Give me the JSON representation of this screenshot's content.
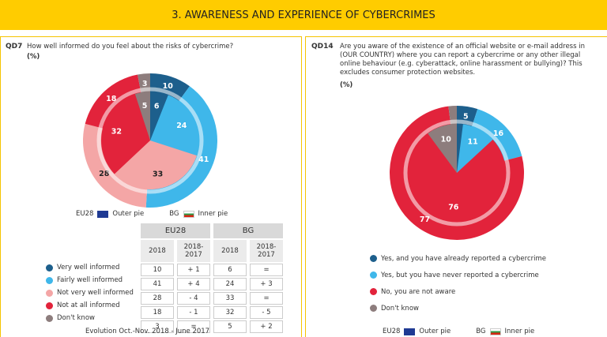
{
  "header": {
    "title": "3. AWARENESS AND EXPERIENCE OF CYBERCRIMES"
  },
  "chart_data": [
    {
      "type": "pie",
      "code": "QD7",
      "question": "How well informed do you feel about the risks of cybercrime?",
      "unit": "(%)",
      "categories": [
        "Very well informed",
        "Fairly well informed",
        "Not very well informed",
        "Not at all informed",
        "Don't know"
      ],
      "colors": [
        "#1d5f8c",
        "#3fb7ea",
        "#f4a6a6",
        "#e2233b",
        "#8d7d7d"
      ],
      "series": [
        {
          "name": "EU28",
          "ring": "Outer pie",
          "values": [
            10,
            41,
            28,
            18,
            3
          ]
        },
        {
          "name": "BG",
          "ring": "Inner pie",
          "values": [
            6,
            24,
            33,
            32,
            5
          ]
        }
      ]
    },
    {
      "type": "pie",
      "code": "QD14",
      "question": "Are you aware of the existence of an official website or e-mail address in (OUR COUNTRY) where you can report a cybercrime or any other illegal online behaviour (e.g. cyberattack, online harassment or bullying)? This excludes consumer protection websites.",
      "unit": "(%)",
      "categories": [
        "Yes, and you have already reported a cybercrime",
        "Yes, but you have never reported a cybercrime",
        "No, you are not aware",
        "Don't know"
      ],
      "colors": [
        "#1d5f8c",
        "#3fb7ea",
        "#e2233b",
        "#8d7d7d"
      ],
      "series": [
        {
          "name": "EU28",
          "ring": "Outer pie",
          "values": [
            5,
            16,
            77,
            2
          ]
        },
        {
          "name": "BG",
          "ring": "Inner pie",
          "values": [
            2,
            11,
            76,
            10
          ]
        }
      ]
    }
  ],
  "table": {
    "subheaders": [
      "2018",
      "2018-2017",
      "2018",
      "2018-2017"
    ],
    "changes": [
      [
        "+ 1",
        "="
      ],
      [
        "+ 4",
        "+ 3"
      ],
      [
        "- 4",
        "="
      ],
      [
        "- 1",
        "- 5"
      ],
      [
        "=",
        "+ 2"
      ]
    ],
    "note": "Evolution Oct.-Nov. 2018 - June 2017"
  }
}
